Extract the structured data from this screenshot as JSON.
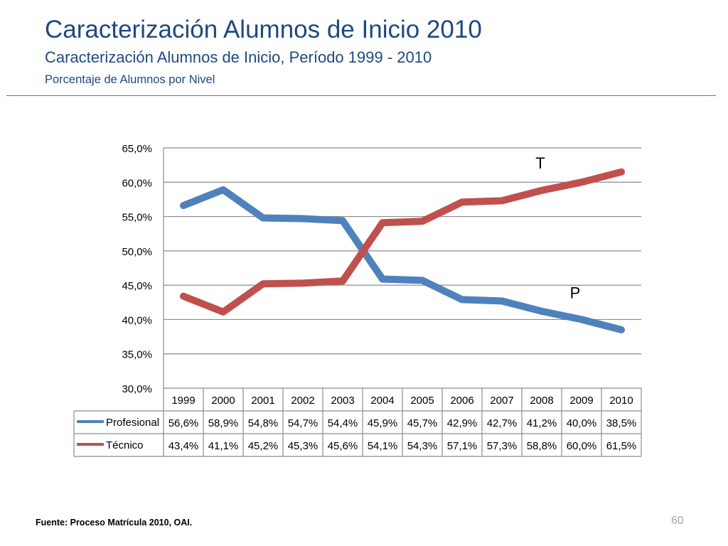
{
  "header": {
    "title": "Caracterización Alumnos de Inicio 2010",
    "subtitle": "Caracterización Alumnos de Inicio, Período 1999 - 2010",
    "subtitle2": "Porcentaje de Alumnos por Nivel"
  },
  "colors": {
    "title": "#1F497D",
    "divider": "#C0504D",
    "profesional": "#4F81BD",
    "tecnico": "#C0504D"
  },
  "chart_data": {
    "type": "line",
    "categories": [
      "1999",
      "2000",
      "2001",
      "2002",
      "2003",
      "2004",
      "2005",
      "2006",
      "2007",
      "2008",
      "2009",
      "2010"
    ],
    "ylim": [
      30,
      65
    ],
    "yticks": [
      "30,0%",
      "35,0%",
      "40,0%",
      "45,0%",
      "50,0%",
      "55,0%",
      "60,0%",
      "65,0%"
    ],
    "grid": true,
    "legend": "data-table",
    "series": [
      {
        "name": "Profesional",
        "values": [
          56.6,
          58.9,
          54.8,
          54.7,
          54.4,
          45.9,
          45.7,
          42.9,
          42.7,
          41.2,
          40.0,
          38.5
        ],
        "labels": [
          "56,6%",
          "58,9%",
          "54,8%",
          "54,7%",
          "54,4%",
          "45,9%",
          "45,7%",
          "42,9%",
          "42,7%",
          "41,2%",
          "40,0%",
          "38,5%"
        ],
        "annotation": "P"
      },
      {
        "name": "Técnico",
        "values": [
          43.4,
          41.1,
          45.2,
          45.3,
          45.6,
          54.1,
          54.3,
          57.1,
          57.3,
          58.8,
          60.0,
          61.5
        ],
        "labels": [
          "43,4%",
          "41,1%",
          "45,2%",
          "45,3%",
          "45,6%",
          "54,1%",
          "54,3%",
          "57,1%",
          "57,3%",
          "58,8%",
          "60,0%",
          "61,5%"
        ],
        "annotation": "T"
      }
    ]
  },
  "footer": {
    "source": "Fuente: Proceso Matrícula 2010, OAI.",
    "page_number": "60"
  }
}
